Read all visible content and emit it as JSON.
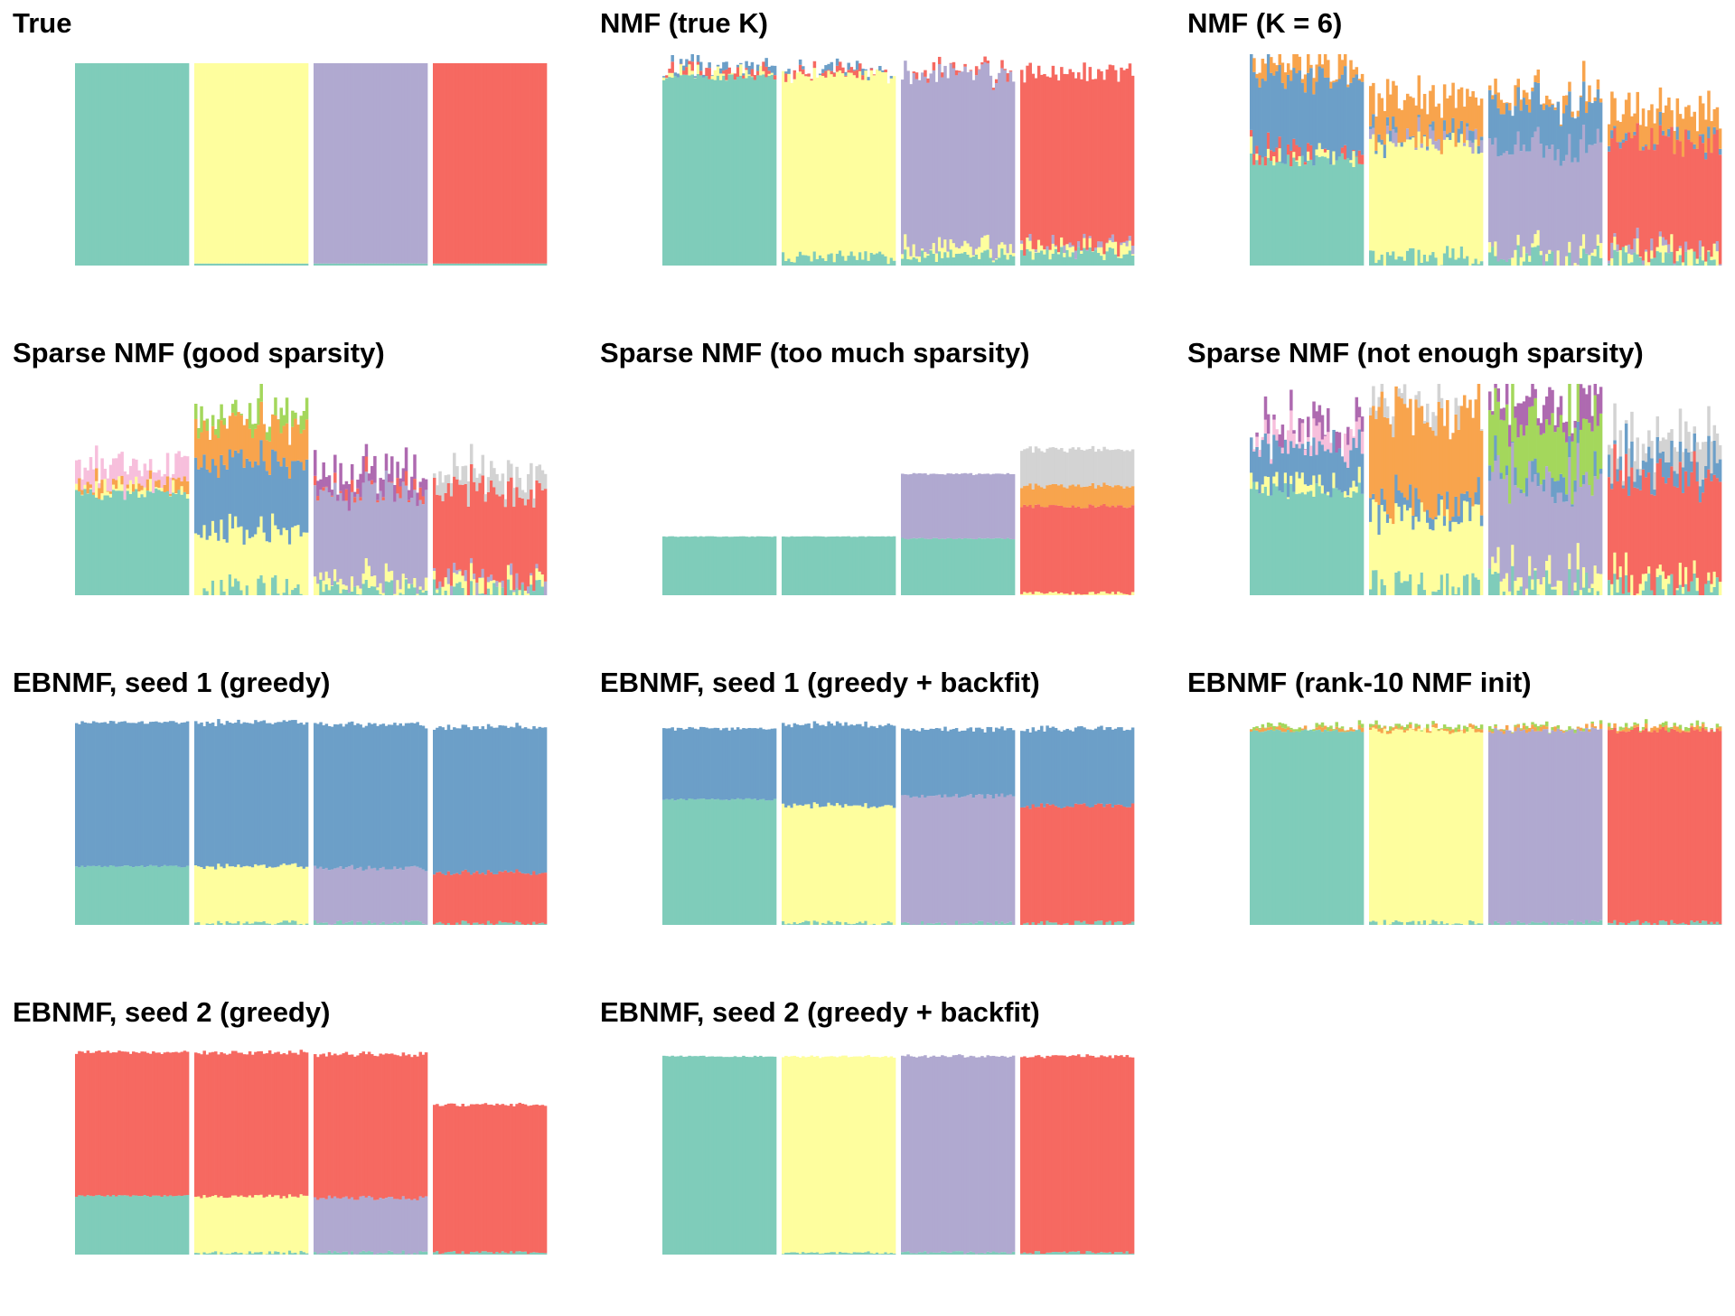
{
  "palette": {
    "k1": "#7FCCBA",
    "k2": "#FEFE9E",
    "k3": "#B0A9D0",
    "k4": "#F66961",
    "k5": "#6C9FC8",
    "k6": "#F8A44D",
    "k7": "#A4D75C",
    "k8": "#F7BFDC",
    "k9": "#D3D3D3",
    "k10": "#AE6AB0"
  },
  "chart_data": [
    {
      "type": "bar",
      "stacked": true,
      "title": "True",
      "groups": 4,
      "segments": [
        [
          [
            "k1",
            1.0
          ]
        ],
        [
          [
            "k1",
            0.01
          ],
          [
            "k2",
            0.99
          ]
        ],
        [
          [
            "k1",
            0.01
          ],
          [
            "k3",
            0.99
          ]
        ],
        [
          [
            "k1",
            0.01
          ],
          [
            "k4",
            0.99
          ]
        ]
      ],
      "noise": 0
    },
    {
      "type": "bar",
      "stacked": true,
      "title": "NMF (true K)",
      "groups": 4,
      "segments": [
        [
          [
            "k1",
            0.93
          ],
          [
            "k2",
            0.02
          ],
          [
            "k4",
            0.02
          ],
          [
            "k5",
            0.01
          ]
        ],
        [
          [
            "k1",
            0.04
          ],
          [
            "k2",
            0.9
          ],
          [
            "k4",
            0.01
          ],
          [
            "k5",
            0.01
          ]
        ],
        [
          [
            "k1",
            0.05
          ],
          [
            "k2",
            0.04
          ],
          [
            "k3",
            0.86
          ],
          [
            "k4",
            0.01
          ]
        ],
        [
          [
            "k1",
            0.06
          ],
          [
            "k2",
            0.03
          ],
          [
            "k3",
            0.01
          ],
          [
            "k4",
            0.85
          ]
        ]
      ],
      "noise": 0.015
    },
    {
      "type": "bar",
      "stacked": true,
      "title": "NMF (K = 6)",
      "groups": 4,
      "segments": [
        [
          [
            "k1",
            0.52
          ],
          [
            "k2",
            0.01
          ],
          [
            "k4",
            0.01
          ],
          [
            "k5",
            0.37
          ],
          [
            "k6",
            0.08
          ]
        ],
        [
          [
            "k1",
            0.04
          ],
          [
            "k2",
            0.56
          ],
          [
            "k3",
            0.01
          ],
          [
            "k5",
            0.02
          ],
          [
            "k6",
            0.18
          ]
        ],
        [
          [
            "k1",
            0.04
          ],
          [
            "k2",
            0.02
          ],
          [
            "k3",
            0.52
          ],
          [
            "k5",
            0.22
          ],
          [
            "k6",
            0.04
          ]
        ],
        [
          [
            "k1",
            0.04
          ],
          [
            "k2",
            0.03
          ],
          [
            "k3",
            0.02
          ],
          [
            "k4",
            0.53
          ],
          [
            "k5",
            0.01
          ],
          [
            "k6",
            0.14
          ]
        ]
      ],
      "noise": 0.03
    },
    {
      "type": "bar",
      "stacked": true,
      "title": "Sparse NMF (good sparsity)",
      "groups": 4,
      "segments": [
        [
          [
            "k1",
            0.5
          ],
          [
            "k2",
            0.02
          ],
          [
            "k6",
            0.02
          ],
          [
            "k8",
            0.08
          ]
        ],
        [
          [
            "k1",
            0.02
          ],
          [
            "k2",
            0.28
          ],
          [
            "k5",
            0.34
          ],
          [
            "k6",
            0.18
          ],
          [
            "k7",
            0.05
          ]
        ],
        [
          [
            "k1",
            0.02
          ],
          [
            "k2",
            0.05
          ],
          [
            "k3",
            0.43
          ],
          [
            "k4",
            0.02
          ],
          [
            "k10",
            0.08
          ]
        ],
        [
          [
            "k1",
            0.02
          ],
          [
            "k2",
            0.03
          ],
          [
            "k3",
            0.02
          ],
          [
            "k4",
            0.44
          ],
          [
            "k9",
            0.08
          ]
        ]
      ],
      "noise": 0.04
    },
    {
      "type": "bar",
      "stacked": true,
      "title": "Sparse NMF (too much sparsity)",
      "groups": 4,
      "segments": [
        [
          [
            "k1",
            0.29
          ]
        ],
        [
          [
            "k1",
            0.29
          ]
        ],
        [
          [
            "k1",
            0.28
          ],
          [
            "k3",
            0.32
          ]
        ],
        [
          [
            "k2",
            0.01
          ],
          [
            "k4",
            0.43
          ],
          [
            "k6",
            0.1
          ],
          [
            "k9",
            0.18
          ]
        ]
      ],
      "noise": 0.005
    },
    {
      "type": "bar",
      "stacked": true,
      "title": "Sparse NMF (not enough sparsity)",
      "groups": 4,
      "segments": [
        [
          [
            "k1",
            0.52
          ],
          [
            "k2",
            0.03
          ],
          [
            "k5",
            0.18
          ],
          [
            "k8",
            0.06
          ],
          [
            "k10",
            0.04
          ]
        ],
        [
          [
            "k1",
            0.04
          ],
          [
            "k2",
            0.34
          ],
          [
            "k5",
            0.05
          ],
          [
            "k6",
            0.44
          ],
          [
            "k9",
            0.02
          ]
        ],
        [
          [
            "k1",
            0.04
          ],
          [
            "k2",
            0.04
          ],
          [
            "k3",
            0.46
          ],
          [
            "k5",
            0.02
          ],
          [
            "k7",
            0.27
          ],
          [
            "k10",
            0.12
          ]
        ],
        [
          [
            "k1",
            0.04
          ],
          [
            "k2",
            0.03
          ],
          [
            "k4",
            0.5
          ],
          [
            "k5",
            0.1
          ],
          [
            "k9",
            0.1
          ]
        ]
      ],
      "noise": 0.045
    },
    {
      "type": "bar",
      "stacked": true,
      "title": "EBNMF, seed 1 (greedy)",
      "groups": 4,
      "segments": [
        [
          [
            "k1",
            0.29
          ],
          [
            "k5",
            0.71
          ]
        ],
        [
          [
            "k1",
            0.01
          ],
          [
            "k2",
            0.28
          ],
          [
            "k5",
            0.71
          ]
        ],
        [
          [
            "k1",
            0.01
          ],
          [
            "k3",
            0.27
          ],
          [
            "k5",
            0.71
          ]
        ],
        [
          [
            "k1",
            0.01
          ],
          [
            "k4",
            0.25
          ],
          [
            "k5",
            0.72
          ]
        ]
      ],
      "noise": 0.005
    },
    {
      "type": "bar",
      "stacked": true,
      "title": "EBNMF, seed 1 (greedy + backfit)",
      "groups": 4,
      "segments": [
        [
          [
            "k1",
            0.62
          ],
          [
            "k5",
            0.35
          ]
        ],
        [
          [
            "k1",
            0.01
          ],
          [
            "k2",
            0.58
          ],
          [
            "k5",
            0.4
          ]
        ],
        [
          [
            "k1",
            0.01
          ],
          [
            "k3",
            0.63
          ],
          [
            "k5",
            0.33
          ]
        ],
        [
          [
            "k1",
            0.01
          ],
          [
            "k4",
            0.58
          ],
          [
            "k5",
            0.38
          ]
        ]
      ],
      "noise": 0.005
    },
    {
      "type": "bar",
      "stacked": true,
      "title": "EBNMF (rank-10 NMF init)",
      "groups": 4,
      "segments": [
        [
          [
            "k1",
            0.96
          ],
          [
            "k6",
            0.01
          ],
          [
            "k7",
            0.01
          ]
        ],
        [
          [
            "k1",
            0.01
          ],
          [
            "k2",
            0.95
          ],
          [
            "k6",
            0.01
          ],
          [
            "k7",
            0.01
          ]
        ],
        [
          [
            "k1",
            0.01
          ],
          [
            "k3",
            0.95
          ],
          [
            "k6",
            0.01
          ],
          [
            "k7",
            0.01
          ]
        ],
        [
          [
            "k1",
            0.01
          ],
          [
            "k4",
            0.95
          ],
          [
            "k6",
            0.01
          ],
          [
            "k7",
            0.01
          ]
        ]
      ],
      "noise": 0.006
    },
    {
      "type": "bar",
      "stacked": true,
      "title": "EBNMF, seed 2 (greedy)",
      "groups": 4,
      "segments": [
        [
          [
            "k1",
            0.29
          ],
          [
            "k4",
            0.71
          ]
        ],
        [
          [
            "k1",
            0.01
          ],
          [
            "k2",
            0.28
          ],
          [
            "k4",
            0.71
          ]
        ],
        [
          [
            "k1",
            0.01
          ],
          [
            "k3",
            0.27
          ],
          [
            "k4",
            0.71
          ]
        ],
        [
          [
            "k1",
            0.01
          ],
          [
            "k4",
            0.73
          ]
        ]
      ],
      "noise": 0.004
    },
    {
      "type": "bar",
      "stacked": true,
      "title": "EBNMF, seed 2 (greedy + backfit)",
      "groups": 4,
      "segments": [
        [
          [
            "k1",
            0.98
          ]
        ],
        [
          [
            "k1",
            0.01
          ],
          [
            "k2",
            0.97
          ]
        ],
        [
          [
            "k1",
            0.01
          ],
          [
            "k3",
            0.97
          ]
        ],
        [
          [
            "k1",
            0.01
          ],
          [
            "k4",
            0.97
          ]
        ]
      ],
      "noise": 0.003
    }
  ]
}
